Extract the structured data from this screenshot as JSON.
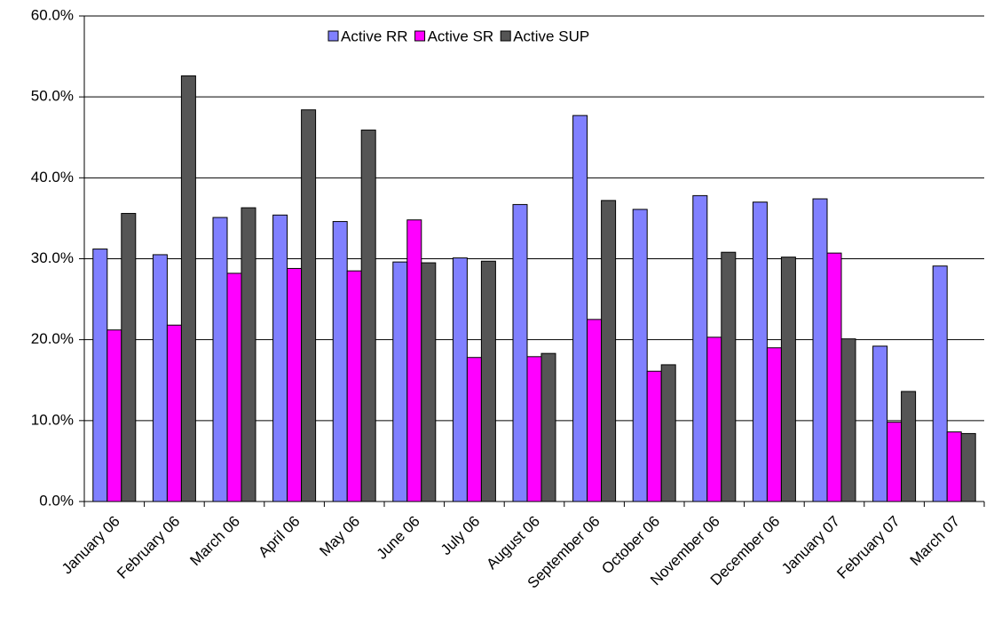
{
  "chart_data": {
    "type": "bar",
    "categories": [
      "January 06",
      "February 06",
      "March 06",
      "April 06",
      "May 06",
      "June 06",
      "July 06",
      "August 06",
      "September 06",
      "October 06",
      "November 06",
      "December 06",
      "January 07",
      "February 07",
      "March 07"
    ],
    "series": [
      {
        "name": "Active RR",
        "color": "#8080ff",
        "values": [
          31.2,
          30.5,
          35.1,
          35.4,
          34.6,
          29.6,
          30.1,
          36.7,
          47.7,
          36.1,
          37.8,
          37.0,
          37.4,
          19.2,
          29.1
        ]
      },
      {
        "name": "Active SR",
        "color": "#ff00ff",
        "values": [
          21.2,
          21.8,
          28.2,
          28.8,
          28.5,
          34.8,
          17.8,
          17.9,
          22.5,
          16.1,
          20.3,
          19.0,
          30.7,
          9.8,
          8.6
        ]
      },
      {
        "name": "Active SUP",
        "color": "#555555",
        "values": [
          35.6,
          52.6,
          36.3,
          48.4,
          45.9,
          29.5,
          29.7,
          18.3,
          37.2,
          16.9,
          30.8,
          30.2,
          20.1,
          13.6,
          8.4
        ]
      }
    ],
    "ylim": [
      0,
      60
    ],
    "yticks": [
      {
        "value": 0,
        "label": "0.0%"
      },
      {
        "value": 10,
        "label": "10.0%"
      },
      {
        "value": 20,
        "label": "20.0%"
      },
      {
        "value": 30,
        "label": "30.0%"
      },
      {
        "value": 40,
        "label": "40.0%"
      },
      {
        "value": 50,
        "label": "50.0%"
      },
      {
        "value": 60,
        "label": "60.0%"
      }
    ],
    "grid": true
  }
}
